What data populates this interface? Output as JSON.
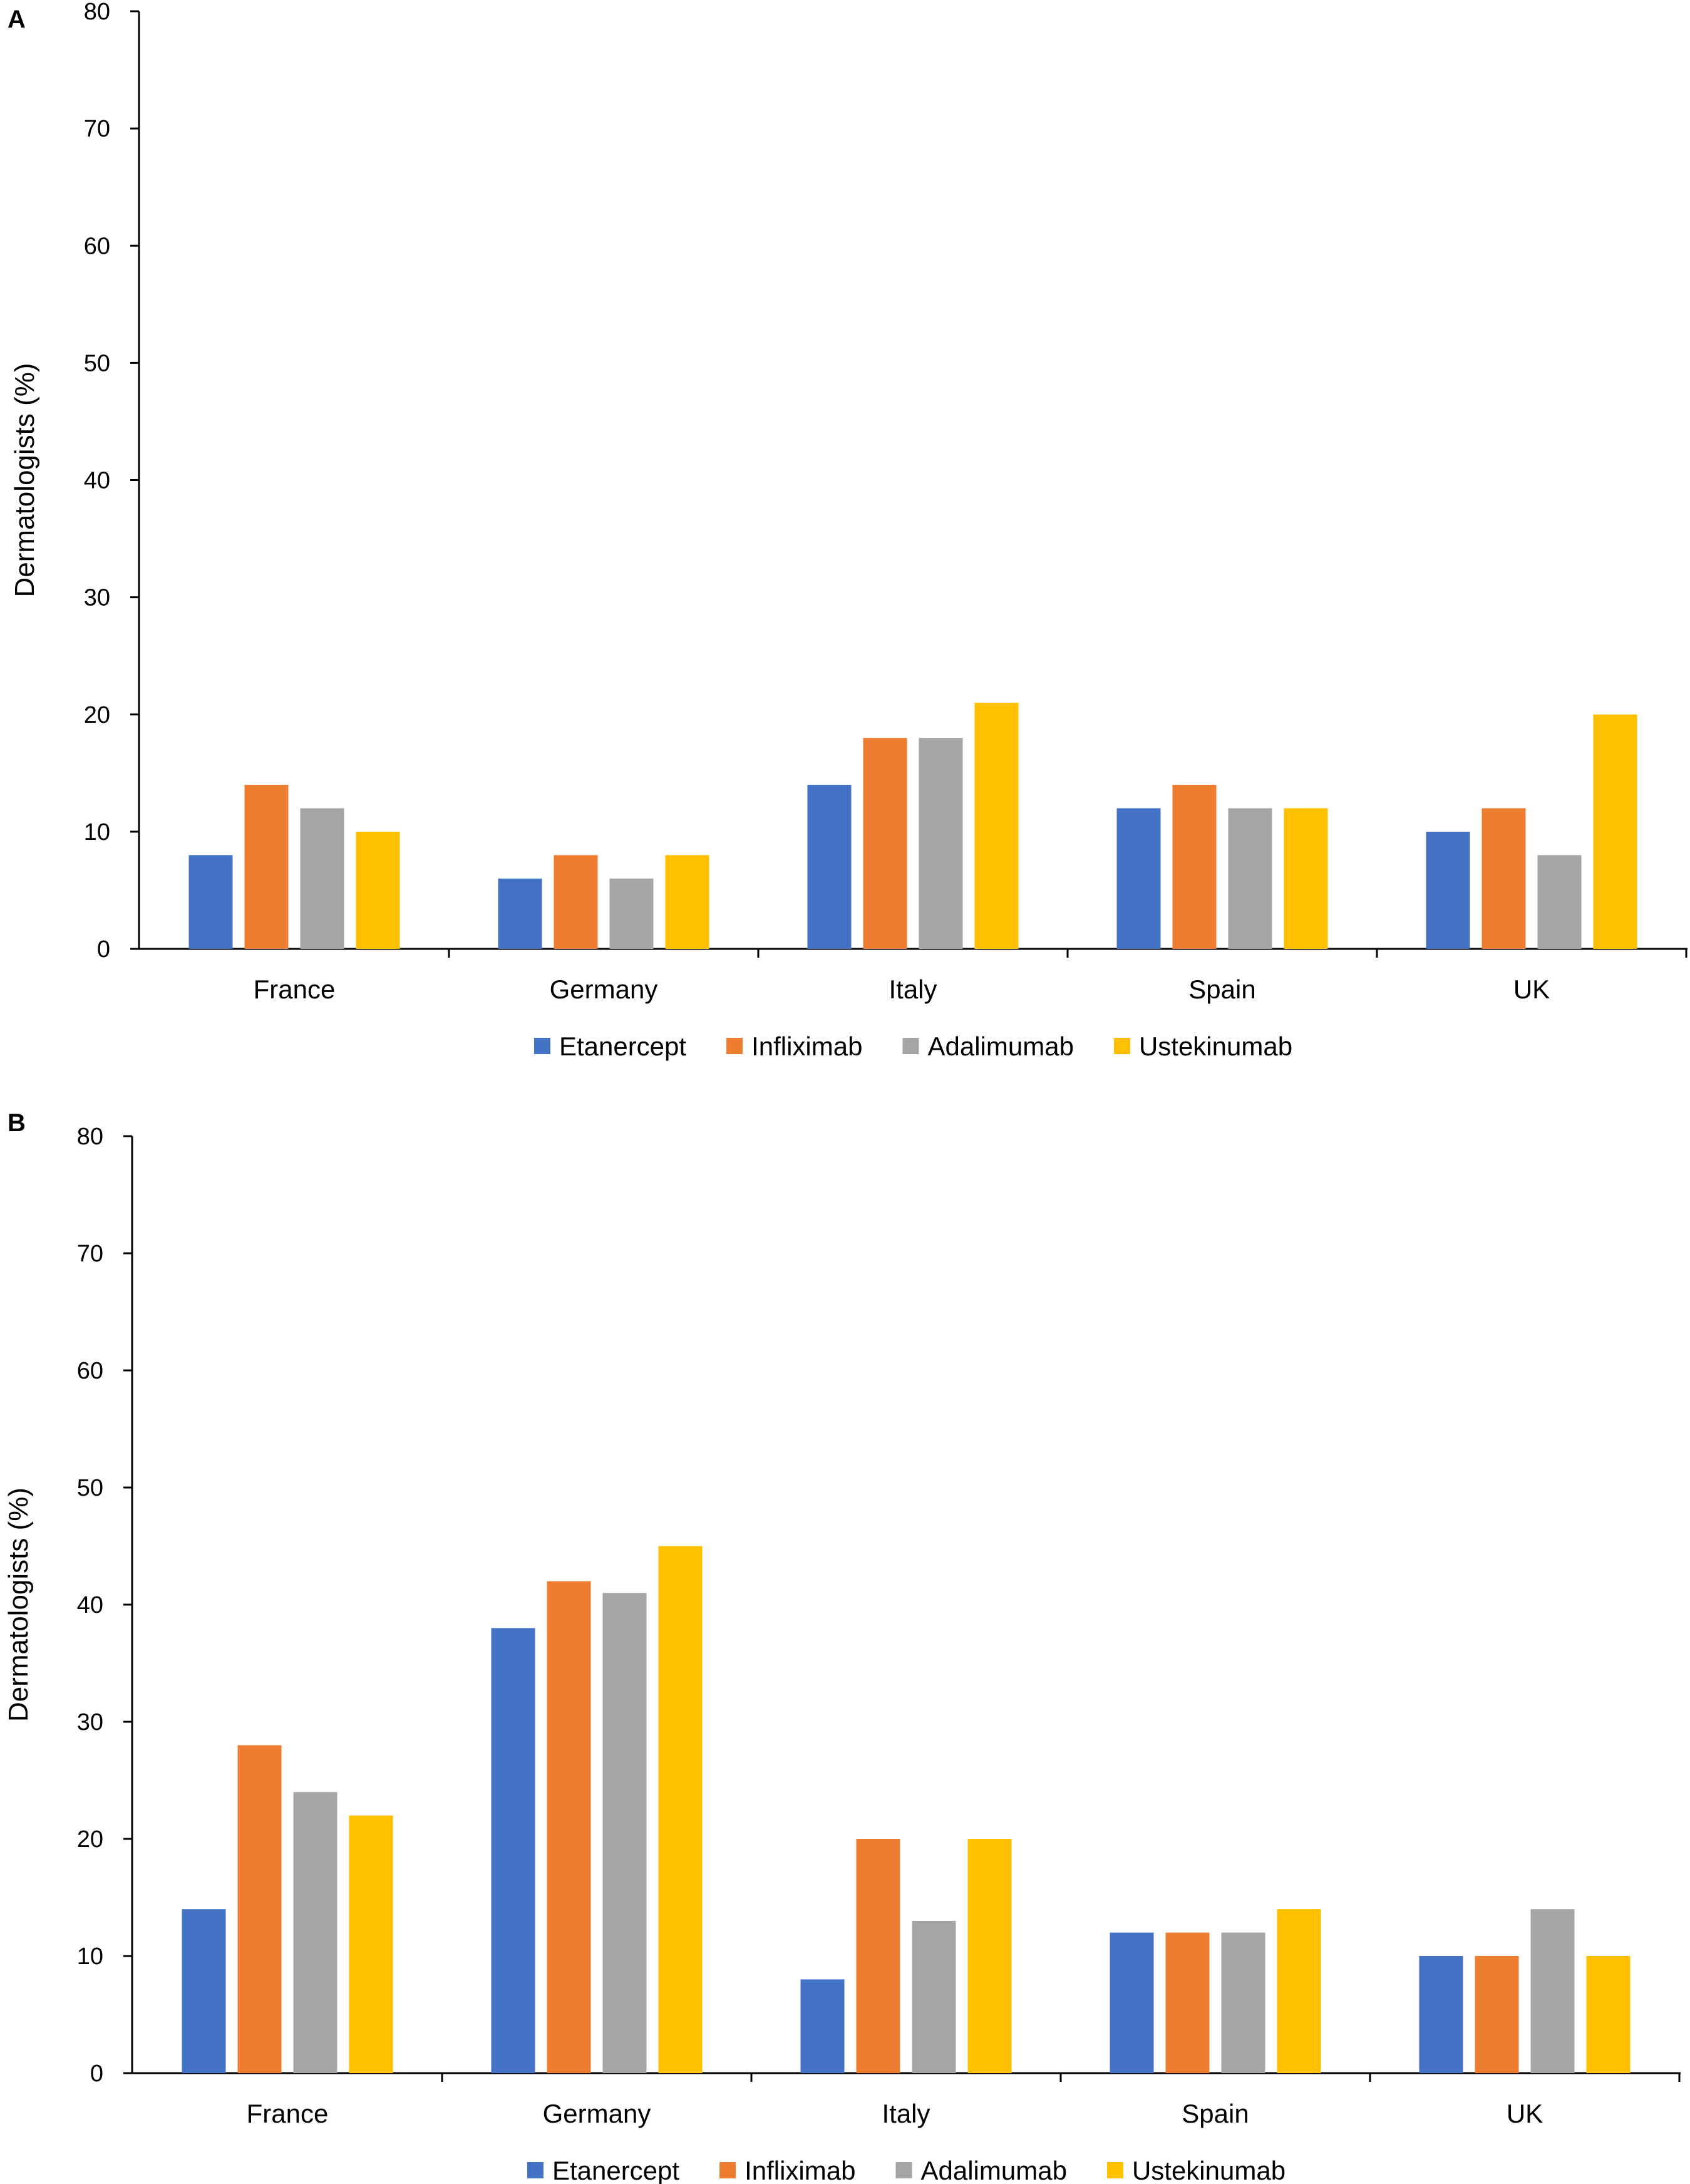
{
  "chart_data": [
    {
      "panel_label": "A",
      "type": "bar",
      "ylabel": "Dermatologists (%)",
      "xlabel": "",
      "ylim": [
        0,
        80
      ],
      "yticks": [
        0,
        10,
        20,
        30,
        40,
        50,
        60,
        70,
        80
      ],
      "grid": false,
      "legend_position": "bottom",
      "categories": [
        "France",
        "Germany",
        "Italy",
        "Spain",
        "UK"
      ],
      "series": [
        {
          "name": "Etanercept",
          "color": "#4472C4",
          "values": [
            8,
            6,
            14,
            12,
            10
          ]
        },
        {
          "name": "Infliximab",
          "color": "#ED7D31",
          "values": [
            14,
            8,
            18,
            14,
            12
          ]
        },
        {
          "name": "Adalimumab",
          "color": "#A5A5A5",
          "values": [
            12,
            6,
            18,
            12,
            8
          ]
        },
        {
          "name": "Ustekinumab",
          "color": "#FFC000",
          "values": [
            10,
            8,
            21,
            12,
            20
          ]
        }
      ]
    },
    {
      "panel_label": "B",
      "type": "bar",
      "ylabel": "Dermatologists (%)",
      "xlabel": "",
      "ylim": [
        0,
        80
      ],
      "yticks": [
        0,
        10,
        20,
        30,
        40,
        50,
        60,
        70,
        80
      ],
      "grid": false,
      "legend_position": "bottom",
      "categories": [
        "France",
        "Germany",
        "Italy",
        "Spain",
        "UK"
      ],
      "series": [
        {
          "name": "Etanercept",
          "color": "#4472C4",
          "values": [
            14,
            38,
            8,
            12,
            10
          ]
        },
        {
          "name": "Infliximab",
          "color": "#ED7D31",
          "values": [
            28,
            42,
            20,
            12,
            10
          ]
        },
        {
          "name": "Adalimumab",
          "color": "#A5A5A5",
          "values": [
            24,
            41,
            13,
            12,
            14
          ]
        },
        {
          "name": "Ustekinumab",
          "color": "#FFC000",
          "values": [
            22,
            45,
            20,
            14,
            10
          ]
        }
      ]
    }
  ]
}
